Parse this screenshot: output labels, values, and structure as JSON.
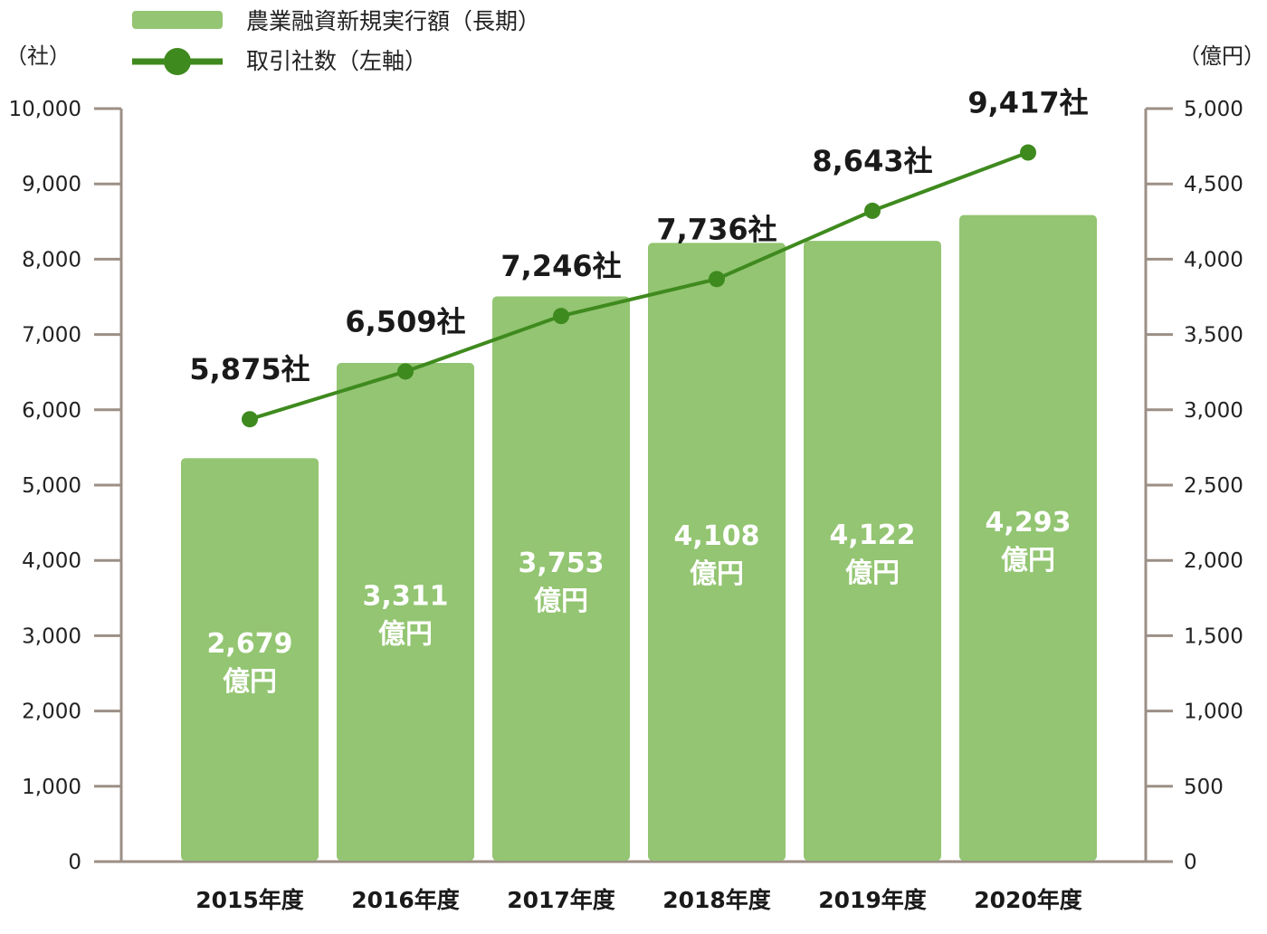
{
  "chart_data": {
    "type": "bar",
    "categories": [
      "2015年度",
      "2016年度",
      "2017年度",
      "2018年度",
      "2019年度",
      "2020年度"
    ],
    "series": [
      {
        "name": "農業融資新規実行額（長期）",
        "type": "bar",
        "axis": "right",
        "values": [
          2679,
          3311,
          3753,
          4108,
          4122,
          4293
        ],
        "labels": [
          "2,679",
          "3,311",
          "3,753",
          "4,108",
          "4,122",
          "4,293"
        ],
        "label_unit": "億円",
        "color": "#93c572"
      },
      {
        "name": "取引社数（左軸）",
        "type": "line",
        "axis": "left",
        "values": [
          5875,
          6509,
          7246,
          7736,
          8643,
          9417
        ],
        "labels": [
          "5,875社",
          "6,509社",
          "7,246社",
          "7,736社",
          "8,643社",
          "9,417社"
        ],
        "color": "#3f8a1e"
      }
    ],
    "left_axis": {
      "unit": "（社）",
      "ylim": [
        0,
        10000
      ],
      "ticks": [
        "0",
        "1,000",
        "2,000",
        "3,000",
        "4,000",
        "5,000",
        "6,000",
        "7,000",
        "8,000",
        "9,000",
        "10,000"
      ]
    },
    "right_axis": {
      "unit": "（億円）",
      "ylim": [
        0,
        5000
      ],
      "ticks": [
        "0",
        "500",
        "1,000",
        "1,500",
        "2,000",
        "2,500",
        "3,000",
        "3,500",
        "4,000",
        "4,500",
        "5,000"
      ]
    },
    "axis_color": "#9c8f85",
    "legend_position": "top-left",
    "grid": false
  }
}
